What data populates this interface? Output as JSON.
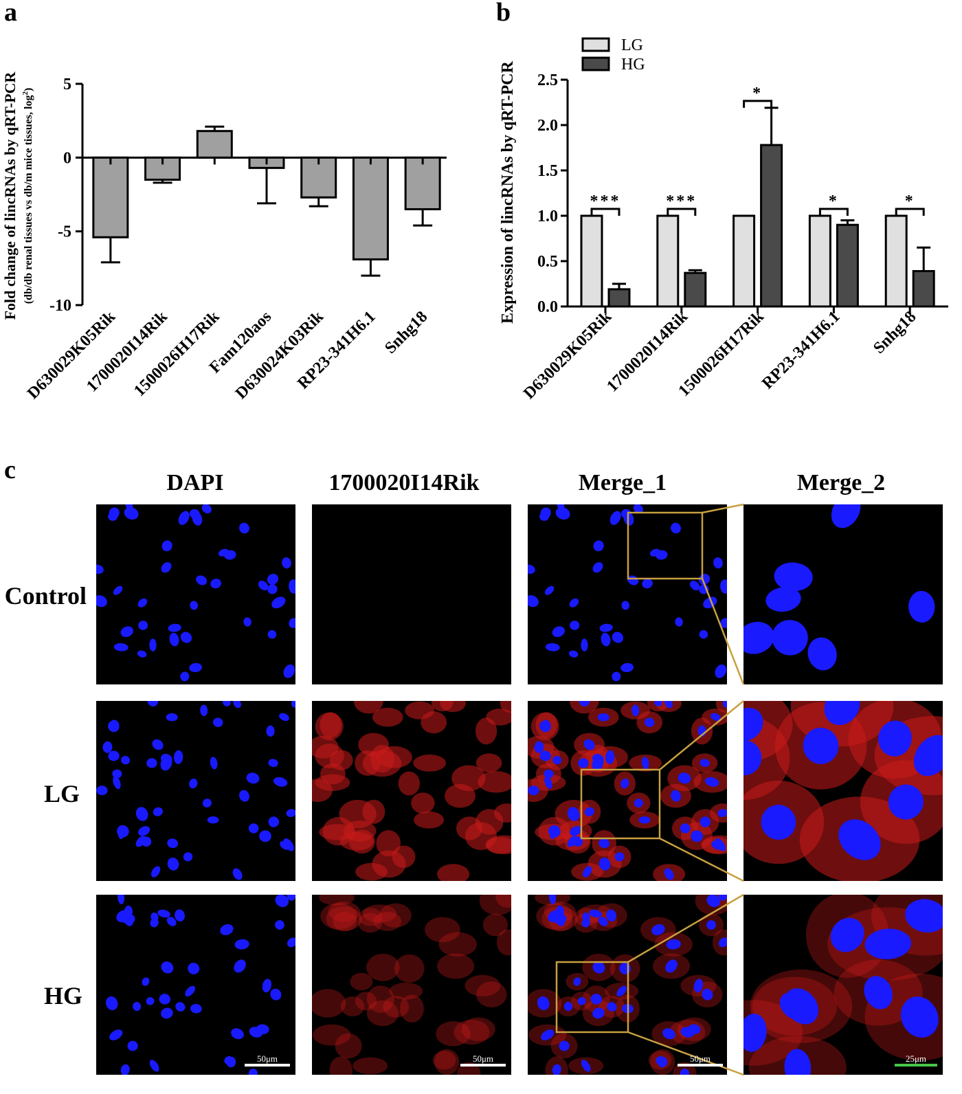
{
  "panels": {
    "a": "a",
    "b": "b",
    "c": "c"
  },
  "chart_data": [
    {
      "id": "a",
      "type": "bar",
      "ylabel_line1": "Fold change of lincRNAs by qRT-PCR",
      "ylabel_line2": "(db/db renal tissues vs db/m mice tissues, log",
      "ylabel_sup": "2",
      "ylabel_end": ")",
      "categories": [
        "D630029K05Rik",
        "1700020I14Rik",
        "1500026H17Rik",
        "Fam120aos",
        "D630024K03Rik",
        "RP23-341H6.1",
        "Snhg18"
      ],
      "values": [
        -5.4,
        -1.5,
        1.8,
        -0.7,
        -2.7,
        -6.9,
        -3.5
      ],
      "errors": [
        1.7,
        0.2,
        0.3,
        2.4,
        0.6,
        1.1,
        1.1
      ],
      "ylim": [
        -10,
        5
      ],
      "yticks": [
        "5",
        "0",
        "-5",
        "-10"
      ],
      "ytick_values": [
        5,
        0,
        -5,
        -10
      ],
      "bar_color": "#a0a0a0"
    },
    {
      "id": "b",
      "type": "bar",
      "ylabel": "Expression of lincRNAs by qRT-PCR",
      "categories": [
        "D630029K05Rik",
        "1700020I14Rik",
        "1500026H17Rik",
        "RP23-341H6.1",
        "Snhg18"
      ],
      "series": [
        {
          "name": "LG",
          "values": [
            1.0,
            1.0,
            1.0,
            1.0,
            1.0
          ],
          "errors": [
            0,
            0,
            0,
            0,
            0
          ],
          "color": "#e0e0e0"
        },
        {
          "name": "HG",
          "values": [
            0.19,
            0.37,
            1.78,
            0.9,
            0.39
          ],
          "errors": [
            0.06,
            0.03,
            0.41,
            0.05,
            0.26
          ],
          "color": "#4a4a4a"
        }
      ],
      "significance": [
        "***",
        "***",
        "*",
        "*",
        "*"
      ],
      "ylim": [
        0,
        2.5
      ],
      "yticks": [
        "0.0",
        "0.5",
        "1.0",
        "1.5",
        "2.0",
        "2.5"
      ],
      "ytick_values": [
        0,
        0.5,
        1.0,
        1.5,
        2.0,
        2.5
      ]
    }
  ],
  "panel_c": {
    "columns": [
      "DAPI",
      "1700020I14Rik",
      "Merge_1",
      "Merge_2"
    ],
    "rows": [
      "Control",
      "LG",
      "HG"
    ],
    "scale_50": "50μm",
    "scale_25": "25μm",
    "colors": {
      "nucleus": "#1a1aff",
      "cytoplasm": "#c81a1a",
      "zoom_box": "#c8a040",
      "scale_25_bar": "#46c646"
    }
  }
}
